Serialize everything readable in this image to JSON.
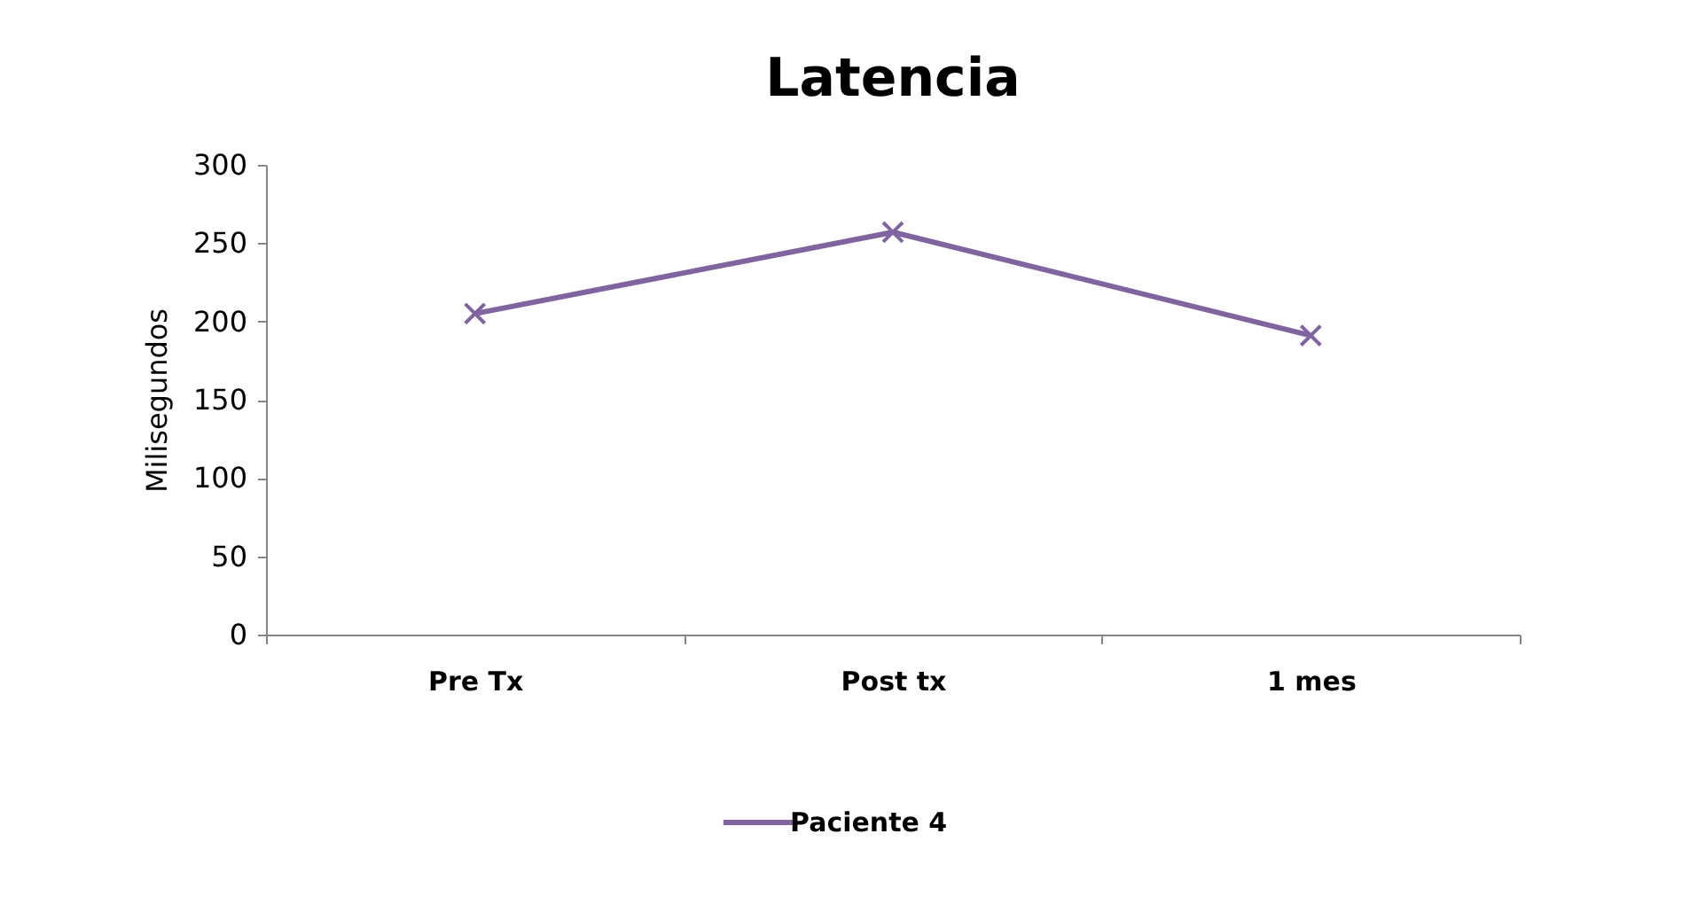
{
  "chart_data": {
    "type": "line",
    "title": "Latencia",
    "ylabel": "Milisegundos",
    "categories": [
      "Pre Tx",
      "Post tx",
      "1 mes"
    ],
    "series": [
      {
        "name": "Paciente 4",
        "color": "#8064a2",
        "values": [
          205,
          257,
          191
        ]
      }
    ],
    "ylim": [
      0,
      300
    ],
    "yticks": [
      0,
      50,
      100,
      150,
      200,
      250,
      300
    ],
    "grid": false,
    "legend": "bottom",
    "marker": "cross",
    "line_style": "solid"
  }
}
